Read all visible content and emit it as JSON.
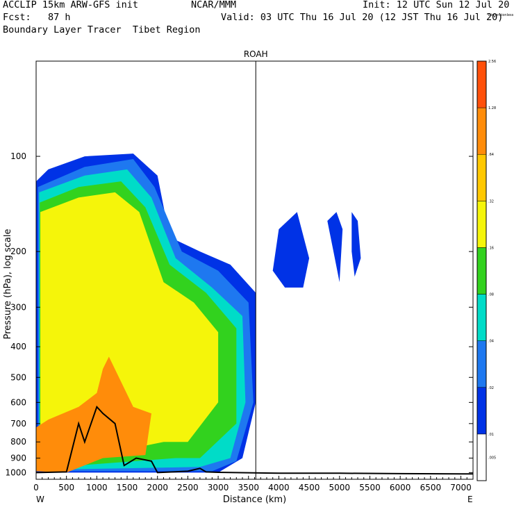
{
  "header": {
    "line1_left": "ACCLIP 15km ARW-GFS init",
    "line1_center": "NCAR/MMM",
    "line1_right": "Init: 12 UTC Sun 12 Jul 20",
    "line2_left": "Fcst:   87 h",
    "line2_right": "Valid: 03 UTC Thu 16 Jul 20 (12 JST Thu 16 Jul 20)",
    "line3_left": "Boundary Layer Tracer  Tibet Region"
  },
  "chart_data": {
    "type": "heatmap",
    "title": "ROAH",
    "xlabel": "Distance (km)",
    "ylabel": "Pressure (hPa), log scale",
    "xlim": [
      0,
      7200
    ],
    "ylim": [
      1050,
      50
    ],
    "y_scale": "log",
    "x_ticks": [
      0,
      500,
      1000,
      1500,
      2000,
      2500,
      3000,
      3500,
      4000,
      4500,
      5000,
      5500,
      6000,
      6500,
      7000
    ],
    "y_ticks": [
      100,
      200,
      300,
      400,
      500,
      600,
      700,
      800,
      900,
      1000
    ],
    "x_end_labels": {
      "left": "W",
      "right": "E"
    },
    "marker_line_x": 3620,
    "colorbar": {
      "labels": [
        ".005",
        ".01",
        ".02",
        ".04",
        ".08",
        ".16",
        ".32",
        ".64",
        "1.28",
        "2.56",
        "Dimensionless"
      ],
      "colors": [
        "#ffffff",
        "#0032e6",
        "#1e78f0",
        "#00dcc8",
        "#32d21e",
        "#f5f50a",
        "#ffc800",
        "#ff8c0a",
        "#ff500a"
      ]
    },
    "fill_levels": [
      {
        "color": "#0032e6",
        "outline": [
          [
            0,
            1000
          ],
          [
            0,
            120
          ],
          [
            200,
            110
          ],
          [
            800,
            100
          ],
          [
            1600,
            98
          ],
          [
            2000,
            115
          ],
          [
            2200,
            180
          ],
          [
            2700,
            200
          ],
          [
            3200,
            220
          ],
          [
            3620,
            270
          ],
          [
            3620,
            600
          ],
          [
            3400,
            900
          ],
          [
            3000,
            1000
          ]
        ]
      },
      {
        "color": "#1e78f0",
        "outline": [
          [
            30,
            990
          ],
          [
            30,
            125
          ],
          [
            800,
            108
          ],
          [
            1600,
            102
          ],
          [
            1950,
            125
          ],
          [
            2400,
            200
          ],
          [
            3000,
            230
          ],
          [
            3500,
            290
          ],
          [
            3580,
            600
          ],
          [
            3300,
            920
          ],
          [
            2900,
            990
          ]
        ]
      },
      {
        "color": "#00dcc8",
        "outline": [
          [
            50,
            980
          ],
          [
            50,
            130
          ],
          [
            800,
            115
          ],
          [
            1500,
            110
          ],
          [
            1900,
            135
          ],
          [
            2300,
            210
          ],
          [
            2900,
            260
          ],
          [
            3400,
            320
          ],
          [
            3450,
            600
          ],
          [
            3200,
            900
          ],
          [
            2700,
            960
          ]
        ]
      },
      {
        "color": "#32d21e",
        "outline": [
          [
            60,
            970
          ],
          [
            60,
            140
          ],
          [
            700,
            125
          ],
          [
            1400,
            120
          ],
          [
            1800,
            145
          ],
          [
            2200,
            220
          ],
          [
            2800,
            270
          ],
          [
            3300,
            350
          ],
          [
            3300,
            700
          ],
          [
            2700,
            900
          ],
          [
            2300,
            900
          ]
        ]
      },
      {
        "color": "#f5f50a",
        "outline": [
          [
            70,
            960
          ],
          [
            70,
            150
          ],
          [
            700,
            135
          ],
          [
            1300,
            130
          ],
          [
            1700,
            150
          ],
          [
            2100,
            250
          ],
          [
            2600,
            290
          ],
          [
            3000,
            360
          ],
          [
            3000,
            600
          ],
          [
            2500,
            800
          ],
          [
            2100,
            800
          ]
        ]
      },
      {
        "color": "#ff8c0a",
        "outline": [
          [
            0,
            990
          ],
          [
            0,
            720
          ],
          [
            200,
            680
          ],
          [
            700,
            620
          ],
          [
            1000,
            560
          ],
          [
            1100,
            470
          ],
          [
            1200,
            430
          ],
          [
            1600,
            620
          ],
          [
            1900,
            650
          ],
          [
            1800,
            880
          ],
          [
            1100,
            900
          ],
          [
            500,
            1000
          ]
        ]
      },
      {
        "color": "#0032e6",
        "outline": [
          [
            3900,
            230
          ],
          [
            4000,
            170
          ],
          [
            4300,
            150
          ],
          [
            4500,
            210
          ],
          [
            4400,
            260
          ],
          [
            4100,
            260
          ]
        ]
      },
      {
        "color": "#0032e6",
        "outline": [
          [
            4800,
            160
          ],
          [
            4950,
            150
          ],
          [
            5050,
            170
          ],
          [
            5000,
            250
          ],
          [
            4900,
            200
          ]
        ]
      },
      {
        "color": "#0032e6",
        "outline": [
          [
            5200,
            150
          ],
          [
            5300,
            160
          ],
          [
            5350,
            210
          ],
          [
            5250,
            240
          ],
          [
            5200,
            200
          ]
        ]
      }
    ],
    "terrain_line": [
      [
        0,
        1000
      ],
      [
        500,
        995
      ],
      [
        700,
        700
      ],
      [
        800,
        800
      ],
      [
        1000,
        620
      ],
      [
        1100,
        650
      ],
      [
        1300,
        700
      ],
      [
        1450,
        950
      ],
      [
        1650,
        900
      ],
      [
        1900,
        920
      ],
      [
        2000,
        1000
      ],
      [
        2500,
        990
      ],
      [
        2700,
        970
      ],
      [
        2800,
        995
      ],
      [
        3000,
        998
      ],
      [
        4000,
        1005
      ],
      [
        5000,
        1005
      ],
      [
        6000,
        1008
      ],
      [
        7000,
        1010
      ],
      [
        7200,
        1010
      ]
    ]
  }
}
